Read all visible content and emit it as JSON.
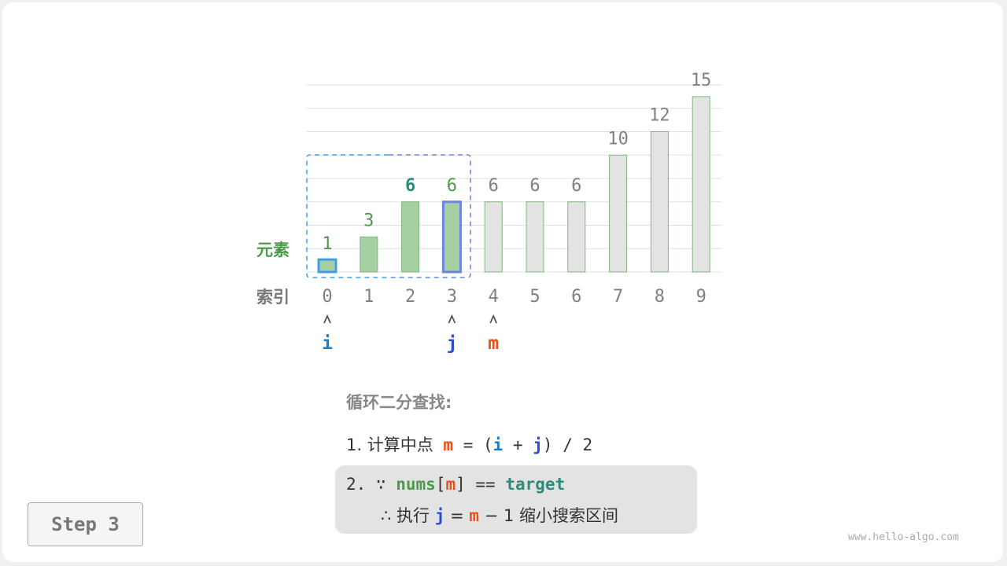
{
  "chart_data": {
    "type": "bar",
    "categories": [
      "0",
      "1",
      "2",
      "3",
      "4",
      "5",
      "6",
      "7",
      "8",
      "9"
    ],
    "values": [
      1,
      3,
      6,
      6,
      6,
      6,
      6,
      10,
      12,
      15
    ],
    "ylim": [
      0,
      16
    ],
    "grid": true,
    "row_label_values": "元素",
    "row_label_index": "索引",
    "active_range": [
      0,
      3
    ],
    "highlight_value_index": 2
  },
  "pointers": [
    {
      "label": "i",
      "index": 0,
      "color": "#1a7fc7"
    },
    {
      "label": "j",
      "index": 3,
      "color": "#2b4fcc"
    },
    {
      "label": "m",
      "index": 4,
      "color": "#e8501a"
    }
  ],
  "colors": {
    "active_fill": "#a6cfa4",
    "active_stroke": "#7cb87a",
    "inactive_fill": "#e3e3e3",
    "value_green": "#4e9a4b",
    "value_teal": "#2f8a7c",
    "gray": "#808080",
    "i_box": "#3fa0e8",
    "j_box": "#6a86dd"
  },
  "text": {
    "title": "循环二分查找:",
    "step1_prefix": "1. 计算中点",
    "step1_m": "m",
    "step1_eq": "= (",
    "step1_i": "i",
    "step1_plus": "+",
    "step1_j": "j",
    "step1_end": ") / 2",
    "step2_prefix": "2. ∵",
    "step2_nums": "nums",
    "step2_lb": "[",
    "step2_m": "m",
    "step2_rb": "] ==",
    "step2_target": "target",
    "step3_prefix": "∴ 执行",
    "step3_j": "j",
    "step3_eq": "=",
    "step3_m": "m",
    "step3_end": "− 1 缩小搜索区间"
  },
  "step_label": "Step 3",
  "watermark": "www.hello-algo.com"
}
